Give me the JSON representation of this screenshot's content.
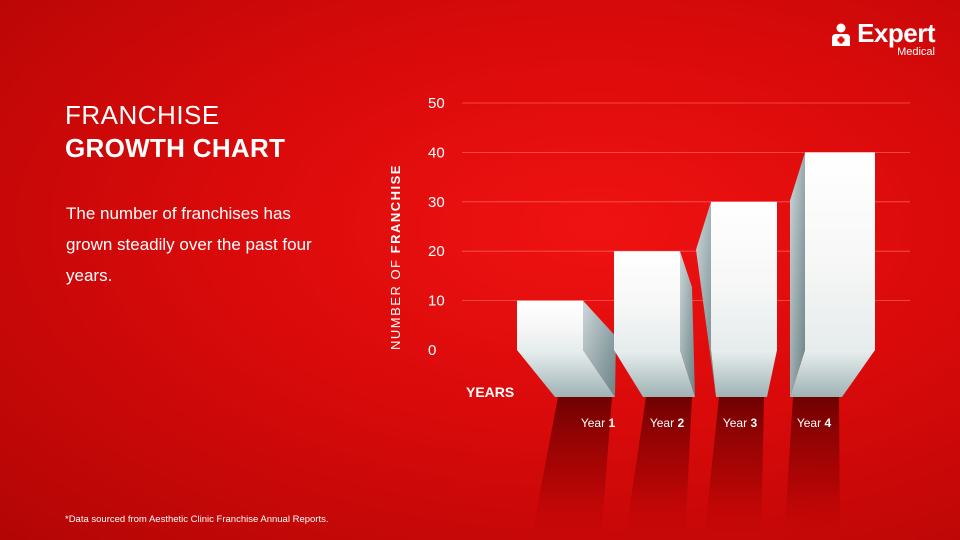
{
  "brand": {
    "name": "Expert",
    "sub": "Medical"
  },
  "heading": {
    "line1": "FRANCHISE",
    "line2": "GROWTH CHART"
  },
  "description": "The number of franchises has grown steadily over the past four years.",
  "footnote": "*Data sourced from Aesthetic Clinic Franchise Annual Reports.",
  "colors": {
    "background": "#e30b0b",
    "bar": "#ffffff",
    "grid": "#ff6a6a"
  },
  "chart_data": {
    "type": "bar",
    "categories": [
      {
        "prefix": "Year",
        "number": "1"
      },
      {
        "prefix": "Year",
        "number": "2"
      },
      {
        "prefix": "Year",
        "number": "3"
      },
      {
        "prefix": "Year",
        "number": "4"
      }
    ],
    "values": [
      10,
      20,
      30,
      40
    ],
    "ylim": [
      0,
      50
    ],
    "yticks": [
      "0",
      "10",
      "20",
      "30",
      "40",
      "50"
    ],
    "ylabel": {
      "normal": "NUMBER OF ",
      "bold": "FRANCHISE"
    },
    "xlabel": "YEARS",
    "grid": true
  }
}
